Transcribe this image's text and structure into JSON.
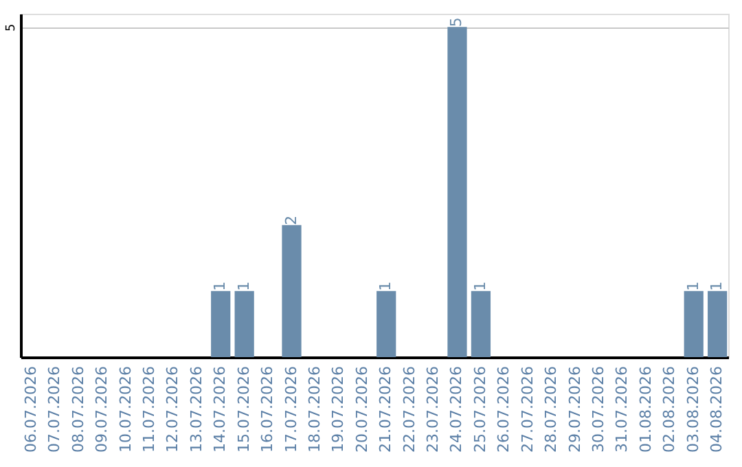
{
  "chart_data": {
    "type": "bar",
    "categories": [
      "06.07.2026",
      "07.07.2026",
      "08.07.2026",
      "09.07.2026",
      "10.07.2026",
      "11.07.2026",
      "12.07.2026",
      "13.07.2026",
      "14.07.2026",
      "15.07.2026",
      "16.07.2026",
      "17.07.2026",
      "18.07.2026",
      "19.07.2026",
      "20.07.2026",
      "21.07.2026",
      "22.07.2026",
      "23.07.2026",
      "24.07.2026",
      "25.07.2026",
      "26.07.2026",
      "27.07.2026",
      "28.07.2026",
      "29.07.2026",
      "30.07.2026",
      "31.07.2026",
      "01.08.2026",
      "02.08.2026",
      "03.08.2026",
      "04.08.2026"
    ],
    "values": [
      0,
      0,
      0,
      0,
      0,
      0,
      0,
      0,
      1,
      1,
      0,
      2,
      0,
      0,
      0,
      1,
      0,
      0,
      5,
      1,
      0,
      0,
      0,
      0,
      0,
      0,
      0,
      0,
      1,
      1
    ],
    "value_labels": [
      null,
      null,
      null,
      null,
      null,
      null,
      null,
      null,
      "1",
      "1",
      null,
      "2",
      null,
      null,
      null,
      "1",
      null,
      null,
      "5",
      "1",
      null,
      null,
      null,
      null,
      null,
      null,
      null,
      null,
      "1",
      "1"
    ],
    "color": "#6a8cab",
    "ylim": [
      0,
      5.2
    ],
    "yticks": [
      5
    ],
    "grid": "y"
  }
}
